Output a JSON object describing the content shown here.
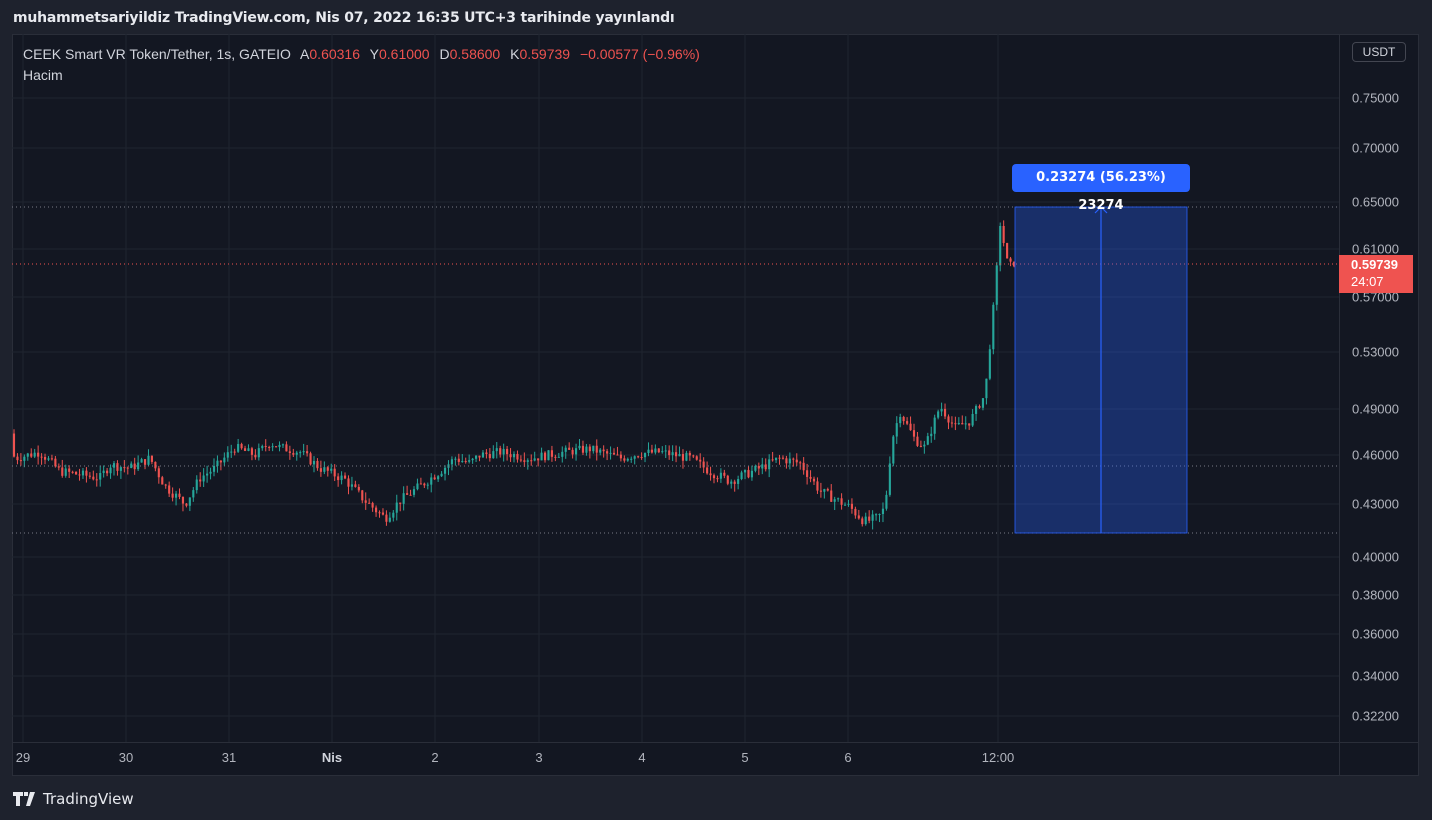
{
  "header": {
    "title": "muhammetsariyildiz TradingView.com, Nis 07, 2022 16:35 UTC+3 tarihinde yayınlandı"
  },
  "legend": {
    "symbol": "CEEK Smart VR Token/Tether, 1s, GATEIO",
    "open_label": "A",
    "open": "0.60316",
    "high_label": "Y",
    "high": "0.61000",
    "low_label": "D",
    "low": "0.58600",
    "close_label": "K",
    "close": "0.59739",
    "change": "−0.00577 (−0.96%)",
    "volume_label": "Hacim"
  },
  "currency": "USDT",
  "price_axis": [
    "0.75000",
    "0.70000",
    "0.65000",
    "0.61000",
    "0.57000",
    "0.53000",
    "0.49000",
    "0.46000",
    "0.43000",
    "0.40000",
    "0.38000",
    "0.36000",
    "0.34000",
    "0.32200"
  ],
  "time_axis": [
    "29",
    "30",
    "31",
    "Nis",
    "2",
    "3",
    "4",
    "5",
    "6",
    "12:00"
  ],
  "last_price": {
    "price": "0.59739",
    "countdown": "24:07"
  },
  "measure": {
    "label": "0.23274 (56.23%) 23274"
  },
  "footer": {
    "brand": "TradingView"
  },
  "colors": {
    "up": "#26a69a",
    "down": "#ef5350",
    "measure": "#2962ff",
    "background": "#131722"
  }
}
